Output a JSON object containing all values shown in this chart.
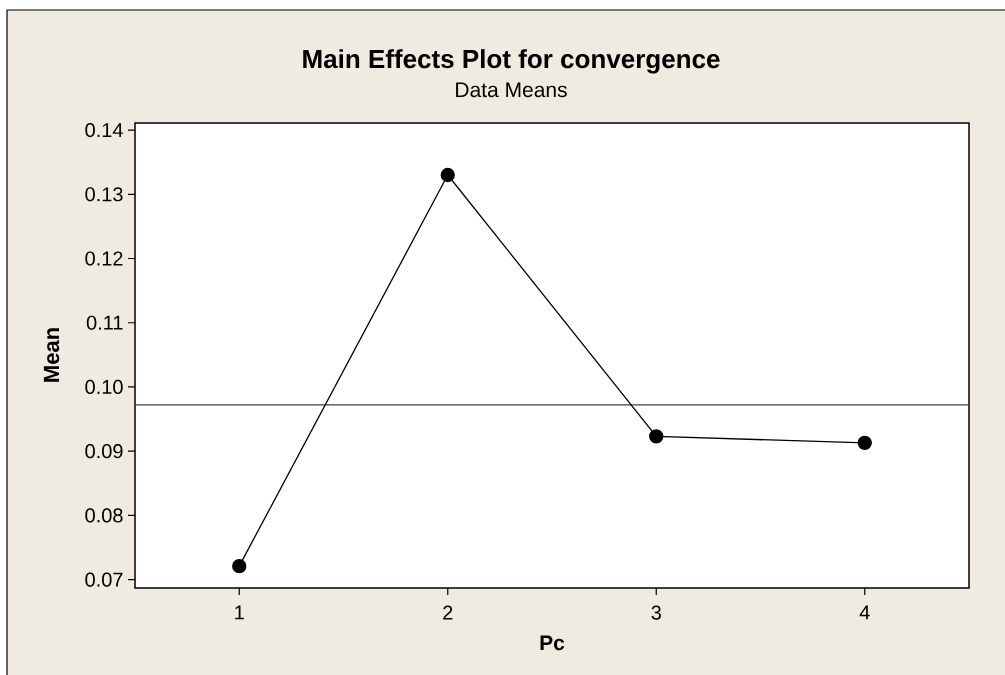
{
  "chart_data": {
    "type": "line",
    "title": "Main Effects Plot for convergence",
    "subtitle": "Data Means",
    "xlabel": "Pc",
    "ylabel": "Mean",
    "categories": [
      "1",
      "2",
      "3",
      "4"
    ],
    "series": [
      {
        "color": "#000000",
        "values": [
          0.0721,
          0.133,
          0.0923,
          0.0913
        ]
      }
    ],
    "ylim": [
      0.0687,
      0.1411
    ],
    "yticks": [
      0.07,
      0.08,
      0.09,
      {
        "value": 0.1,
        "label": "0.10"
      },
      0.11,
      0.12,
      0.13,
      0.14
    ],
    "ref_lines": [
      {
        "axis": "y",
        "value": 0.0972,
        "color": "#404040"
      }
    ],
    "marker": "circle",
    "line_style": "solid"
  }
}
